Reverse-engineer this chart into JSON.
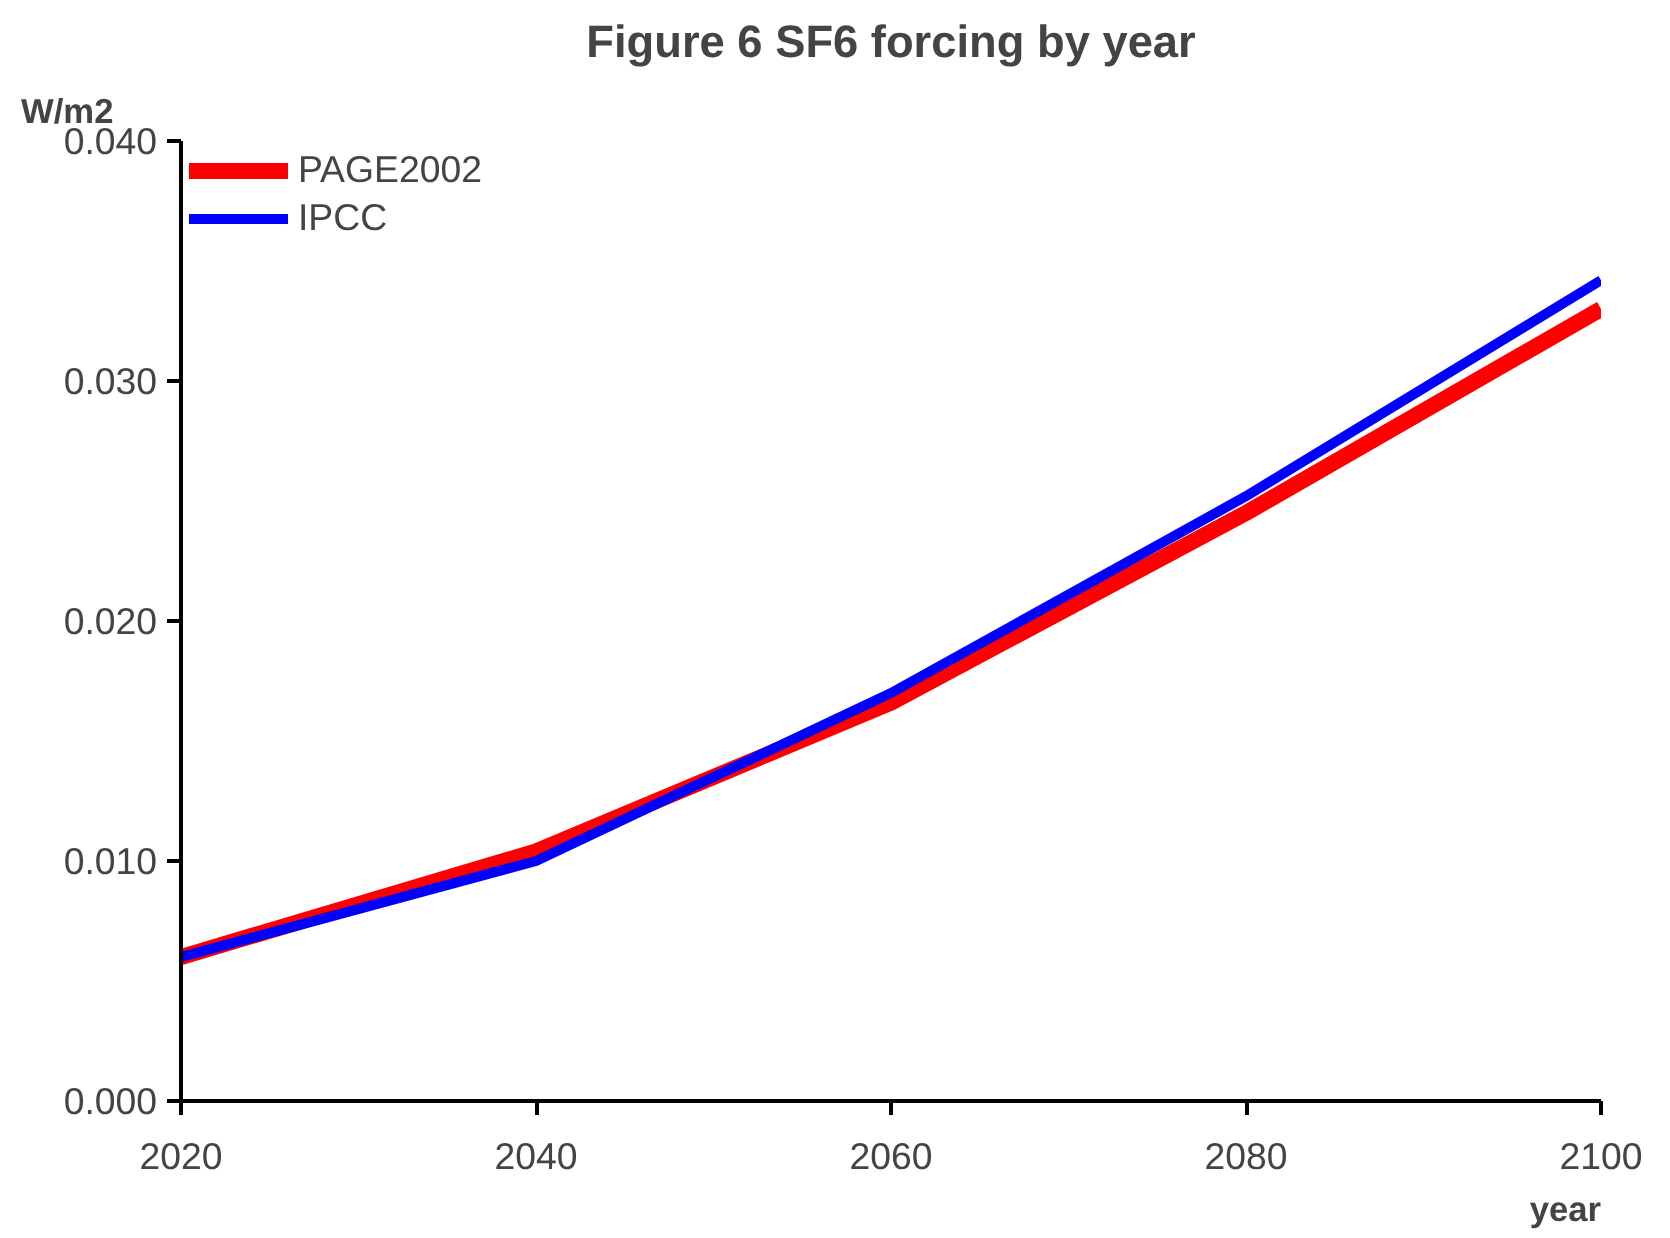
{
  "chart_data": {
    "type": "line",
    "title": "Figure 6 SF6 forcing by year",
    "xlabel": "year",
    "ylabel": "W/m2",
    "x": [
      2020,
      2040,
      2060,
      2080,
      2100
    ],
    "series": [
      {
        "name": "PAGE2002",
        "color": "#ff0000",
        "values": [
          0.006,
          0.0104,
          0.0166,
          0.0245,
          0.033
        ]
      },
      {
        "name": "IPCC",
        "color": "#0000ff",
        "values": [
          0.006,
          0.01,
          0.017,
          0.0252,
          0.0342
        ]
      }
    ],
    "xlim": [
      2020,
      2100
    ],
    "xticks": [
      2020,
      2040,
      2060,
      2080,
      2100
    ],
    "ylim": [
      0,
      0.04
    ],
    "yticks": [
      {
        "value": 0,
        "label": "0.000"
      },
      {
        "value": 0.01,
        "label": "0.010"
      },
      {
        "value": 0.02,
        "label": "0.020"
      },
      {
        "value": 0.03,
        "label": "0.030"
      },
      {
        "value": 0.04,
        "label": "0.040"
      }
    ],
    "grid": false,
    "legend": "top left",
    "marker": "none",
    "line_style": "solid"
  }
}
